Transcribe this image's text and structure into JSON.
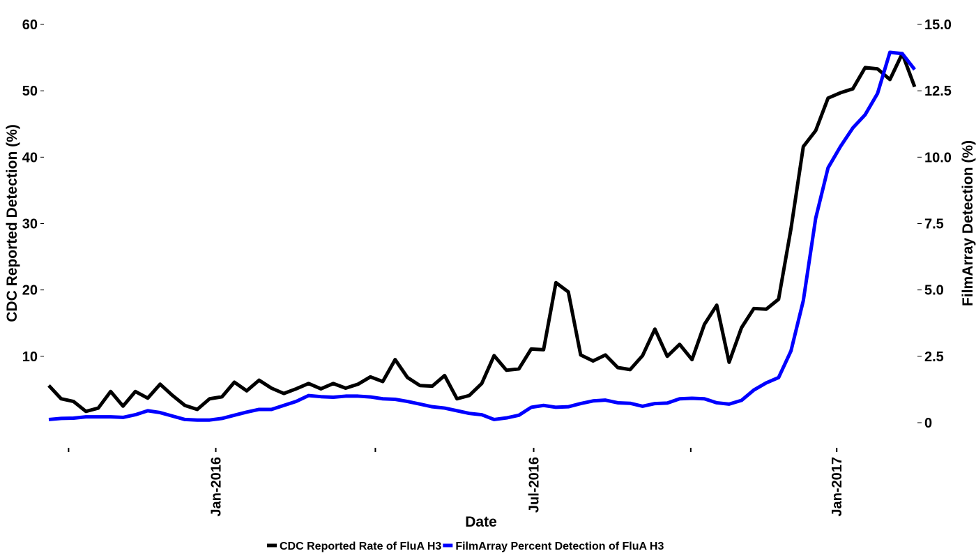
{
  "chart_data": {
    "type": "line",
    "x_label": "Date",
    "y_label": "CDC Reported Detection (%)",
    "y2_label": "FilmArray Detection (%)",
    "xticks": [
      {
        "value": 1.6,
        "label": null
      },
      {
        "value": 13.5,
        "label": "Jan-2016"
      },
      {
        "value": 26.4,
        "label": null
      },
      {
        "value": 39.2,
        "label": "Jul-2016"
      },
      {
        "value": 51.9,
        "label": null
      },
      {
        "value": 63.7,
        "label": "Jan-2017"
      }
    ],
    "ylim": [
      0,
      60
    ],
    "yticks": [
      10,
      20,
      30,
      40,
      50,
      60
    ],
    "y2lim": [
      0,
      15
    ],
    "y2ticks": [
      0,
      2.5,
      {
        "value": 5,
        "label": "5.0"
      },
      7.5,
      {
        "value": 10,
        "label": "10.0"
      },
      12.5,
      {
        "value": 15,
        "label": "15.0"
      }
    ],
    "series": [
      {
        "name": "CDC Reported Rate of FluA H3",
        "color": "#000000",
        "axis": "y",
        "values": [
          5.6,
          3.6,
          3.2,
          1.7,
          2.2,
          4.7,
          2.5,
          4.7,
          3.7,
          5.8,
          4.1,
          2.6,
          2.0,
          3.6,
          3.9,
          6.1,
          4.8,
          6.4,
          5.2,
          4.4,
          5.1,
          5.9,
          5.1,
          5.9,
          5.2,
          5.8,
          6.9,
          6.2,
          9.5,
          6.8,
          5.6,
          5.5,
          7.1,
          3.6,
          4.1,
          5.9,
          10.1,
          7.9,
          8.1,
          11.1,
          11.0,
          21.1,
          19.7,
          10.2,
          9.3,
          10.2,
          8.3,
          8.0,
          10.1,
          14.1,
          10.0,
          11.8,
          9.5,
          14.8,
          17.7,
          9.1,
          14.3,
          17.2,
          17.1,
          18.6,
          29.2,
          41.6,
          44.0,
          48.9,
          49.7,
          50.3,
          53.5,
          53.3,
          51.7,
          55.6,
          50.6
        ]
      },
      {
        "name": "FilmArray Percent Detection of FluA H3",
        "color": "#0000ff",
        "axis": "y2",
        "values": [
          0.12,
          0.16,
          0.17,
          0.22,
          0.22,
          0.22,
          0.2,
          0.3,
          0.45,
          0.38,
          0.25,
          0.12,
          0.1,
          0.1,
          0.16,
          0.28,
          0.4,
          0.5,
          0.5,
          0.65,
          0.8,
          1.02,
          0.98,
          0.96,
          1.0,
          1.0,
          0.97,
          0.9,
          0.88,
          0.8,
          0.7,
          0.6,
          0.55,
          0.45,
          0.35,
          0.3,
          0.12,
          0.18,
          0.28,
          0.58,
          0.65,
          0.58,
          0.6,
          0.72,
          0.82,
          0.85,
          0.75,
          0.73,
          0.62,
          0.72,
          0.74,
          0.9,
          0.92,
          0.9,
          0.75,
          0.7,
          0.84,
          1.23,
          1.5,
          1.7,
          2.7,
          4.6,
          7.7,
          9.6,
          10.4,
          11.1,
          11.6,
          12.4,
          13.95,
          13.9,
          13.3
        ]
      }
    ]
  }
}
